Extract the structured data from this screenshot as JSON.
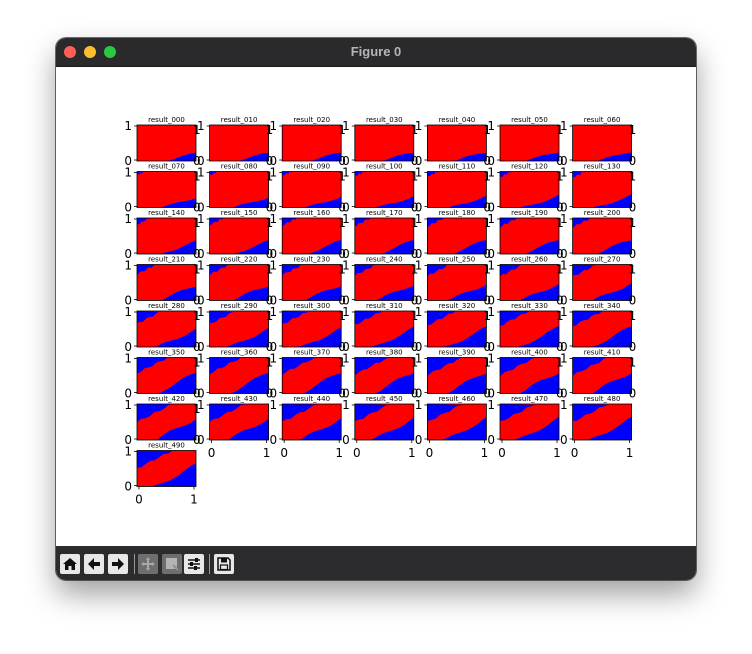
{
  "window": {
    "title": "Figure 0"
  },
  "colors": {
    "class_a": "#ff0000",
    "class_b": "#0000ff",
    "frame": "#000000"
  },
  "toolbar": {
    "buttons": [
      {
        "name": "home-button",
        "icon": "home-icon",
        "enabled": true
      },
      {
        "name": "back-button",
        "icon": "arrow-left-icon",
        "enabled": true
      },
      {
        "name": "forward-button",
        "icon": "arrow-right-icon",
        "enabled": true
      },
      {
        "name": "pan-button",
        "icon": "pan-icon",
        "enabled": false
      },
      {
        "name": "zoom-button",
        "icon": "zoom-icon",
        "enabled": false
      },
      {
        "name": "configure-subplots-button",
        "icon": "sliders-icon",
        "enabled": true
      },
      {
        "name": "save-button",
        "icon": "save-icon",
        "enabled": true
      }
    ]
  },
  "chart_data": {
    "type": "heatmap",
    "layout": {
      "rows": 8,
      "cols": 7,
      "count": 50
    },
    "xlim": [
      0,
      1
    ],
    "ylim": [
      0,
      1
    ],
    "xticks": [
      "0",
      "1"
    ],
    "yticks": [
      "0",
      "1"
    ],
    "panel_titles": [
      "result_000",
      "result_010",
      "result_020",
      "result_030",
      "result_040",
      "result_050",
      "result_060",
      "result_070",
      "result_080",
      "result_090",
      "result_100",
      "result_110",
      "result_120",
      "result_130",
      "result_140",
      "result_150",
      "result_160",
      "result_170",
      "result_180",
      "result_190",
      "result_200",
      "result_210",
      "result_220",
      "result_230",
      "result_240",
      "result_250",
      "result_260",
      "result_270",
      "result_280",
      "result_290",
      "result_300",
      "result_310",
      "result_320",
      "result_330",
      "result_340",
      "result_350",
      "result_360",
      "result_370",
      "result_380",
      "result_390",
      "result_400",
      "result_410",
      "result_420",
      "result_430",
      "result_440",
      "result_450",
      "result_460",
      "result_470",
      "result_480",
      "result_490"
    ]
  }
}
